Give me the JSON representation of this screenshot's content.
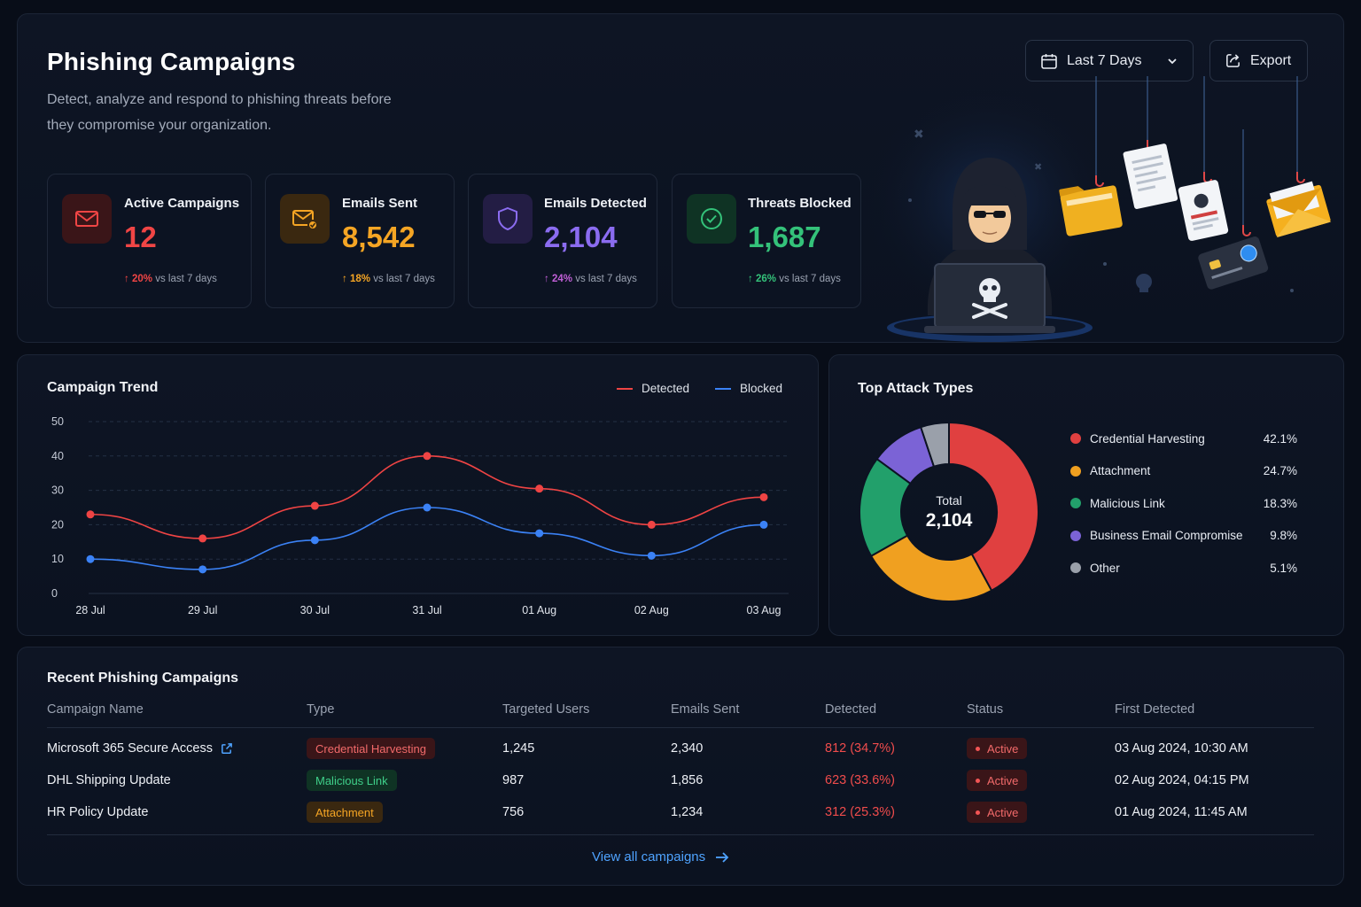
{
  "header": {
    "title": "Phishing Campaigns",
    "subtitle": "Detect, analyze and respond to phishing threats before they compromise your organization.",
    "date_range": "Last 7 Days",
    "export_label": "Export"
  },
  "stats": [
    {
      "label": "Active Campaigns",
      "value": "12",
      "change": "20%",
      "suffix": "vs last 7 days",
      "color": "#f04545",
      "icon": "mail-icon"
    },
    {
      "label": "Emails Sent",
      "value": "8,542",
      "change": "18%",
      "suffix": "vs last 7 days",
      "color": "#f5a524",
      "icon": "mail-sent-icon"
    },
    {
      "label": "Emails Detected",
      "value": "2,104",
      "change": "24%",
      "suffix": "vs last 7 days",
      "color": "#8b6cf0",
      "icon": "shield-icon"
    },
    {
      "label": "Threats Blocked",
      "value": "1,687",
      "change": "26%",
      "suffix": "vs last 7 days",
      "color": "#34c27a",
      "icon": "check-circle-icon"
    }
  ],
  "trend": {
    "title": "Campaign Trend",
    "legend_detected": "Detected",
    "legend_blocked": "Blocked"
  },
  "chart_data": {
    "type": "line",
    "x": [
      "28 Jul",
      "29 Jul",
      "30 Jul",
      "31 Jul",
      "01 Aug",
      "02 Aug",
      "03 Aug"
    ],
    "yticks": [
      "0",
      "10",
      "20",
      "30",
      "40",
      "50"
    ],
    "ylim": [
      0,
      50
    ],
    "grid": true,
    "legend_position": "top-right",
    "series": [
      {
        "name": "Detected",
        "color": "#ef4444",
        "values": [
          23,
          16,
          25.5,
          40,
          30.5,
          20,
          28
        ]
      },
      {
        "name": "Blocked",
        "color": "#3b82f6",
        "values": [
          10,
          7,
          15.5,
          25,
          17.5,
          11,
          20
        ]
      }
    ]
  },
  "attack": {
    "title": "Top Attack Types",
    "total_label": "Total",
    "total_value": "2,104",
    "types": [
      {
        "name": "Credential Harvesting",
        "pct": "42.1%",
        "value": 42.1,
        "color": "#e04040"
      },
      {
        "name": "Attachment",
        "pct": "24.7%",
        "value": 24.7,
        "color": "#f0a020"
      },
      {
        "name": "Malicious Link",
        "pct": "18.3%",
        "value": 18.3,
        "color": "#22a06b"
      },
      {
        "name": "Business Email Compromise",
        "pct": "9.8%",
        "value": 9.8,
        "color": "#7b63d6"
      },
      {
        "name": "Other",
        "pct": "5.1%",
        "value": 5.1,
        "color": "#9aa0aa"
      }
    ]
  },
  "recent": {
    "title": "Recent Phishing Campaigns",
    "columns": [
      "Campaign Name",
      "Type",
      "Targeted Users",
      "Emails Sent",
      "Detected",
      "Status",
      "First Detected"
    ],
    "rows": [
      {
        "name": "Microsoft 365 Secure Access",
        "type": "Credential Harvesting",
        "targeted": "1,245",
        "sent": "2,340",
        "detected": "812 (34.7%)",
        "status": "Active",
        "first": "03 Aug 2024, 10:30 AM"
      },
      {
        "name": "DHL Shipping Update",
        "type": "Malicious Link",
        "targeted": "987",
        "sent": "1,856",
        "detected": "623 (33.6%)",
        "status": "Active",
        "first": "02 Aug 2024, 04:15 PM"
      },
      {
        "name": "HR Policy Update",
        "type": "Attachment",
        "targeted": "756",
        "sent": "1,234",
        "detected": "312 (25.3%)",
        "status": "Active",
        "first": "01 Aug 2024, 11:45 AM"
      }
    ],
    "view_all": "View all campaigns"
  }
}
